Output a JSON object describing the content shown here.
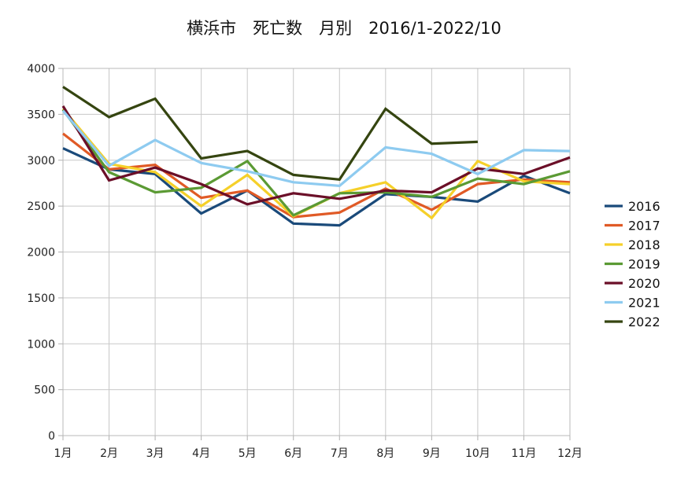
{
  "chart_data": {
    "type": "line",
    "title": "横浜市　死亡数　月別　2016/1-2022/10",
    "xlabel": "",
    "ylabel": "",
    "categories": [
      "1月",
      "2月",
      "3月",
      "4月",
      "5月",
      "6月",
      "7月",
      "8月",
      "9月",
      "10月",
      "11月",
      "12月"
    ],
    "ylim": [
      0,
      4000
    ],
    "yticks": [
      0,
      500,
      1000,
      1500,
      2000,
      2500,
      3000,
      3500,
      4000
    ],
    "grid": true,
    "legend_position": "right",
    "series": [
      {
        "name": "2016",
        "color": "#1a4a7a",
        "values": [
          3130,
          2900,
          2850,
          2420,
          2670,
          2310,
          2290,
          2630,
          2600,
          2550,
          2830,
          2640
        ]
      },
      {
        "name": "2017",
        "color": "#e05a26",
        "values": [
          3290,
          2900,
          2950,
          2590,
          2670,
          2380,
          2430,
          2690,
          2460,
          2740,
          2790,
          2760
        ]
      },
      {
        "name": "2018",
        "color": "#f5d02a",
        "values": [
          3560,
          2960,
          2870,
          2500,
          2840,
          2390,
          2640,
          2760,
          2370,
          2990,
          2770,
          2740
        ]
      },
      {
        "name": "2019",
        "color": "#5b9a34",
        "values": [
          3550,
          2870,
          2650,
          2700,
          2990,
          2400,
          2640,
          2650,
          2600,
          2800,
          2740,
          2880
        ]
      },
      {
        "name": "2020",
        "color": "#6b0f28",
        "values": [
          3590,
          2780,
          2920,
          2740,
          2520,
          2640,
          2580,
          2670,
          2650,
          2910,
          2850,
          3030
        ]
      },
      {
        "name": "2021",
        "color": "#8ecbf0",
        "values": [
          3540,
          2940,
          3220,
          2970,
          2880,
          2760,
          2720,
          3140,
          3070,
          2850,
          3110,
          3100
        ]
      },
      {
        "name": "2022",
        "color": "#354510",
        "values": [
          3800,
          3470,
          3670,
          3020,
          3100,
          2840,
          2790,
          3560,
          3180,
          3200,
          null,
          null
        ]
      }
    ]
  }
}
